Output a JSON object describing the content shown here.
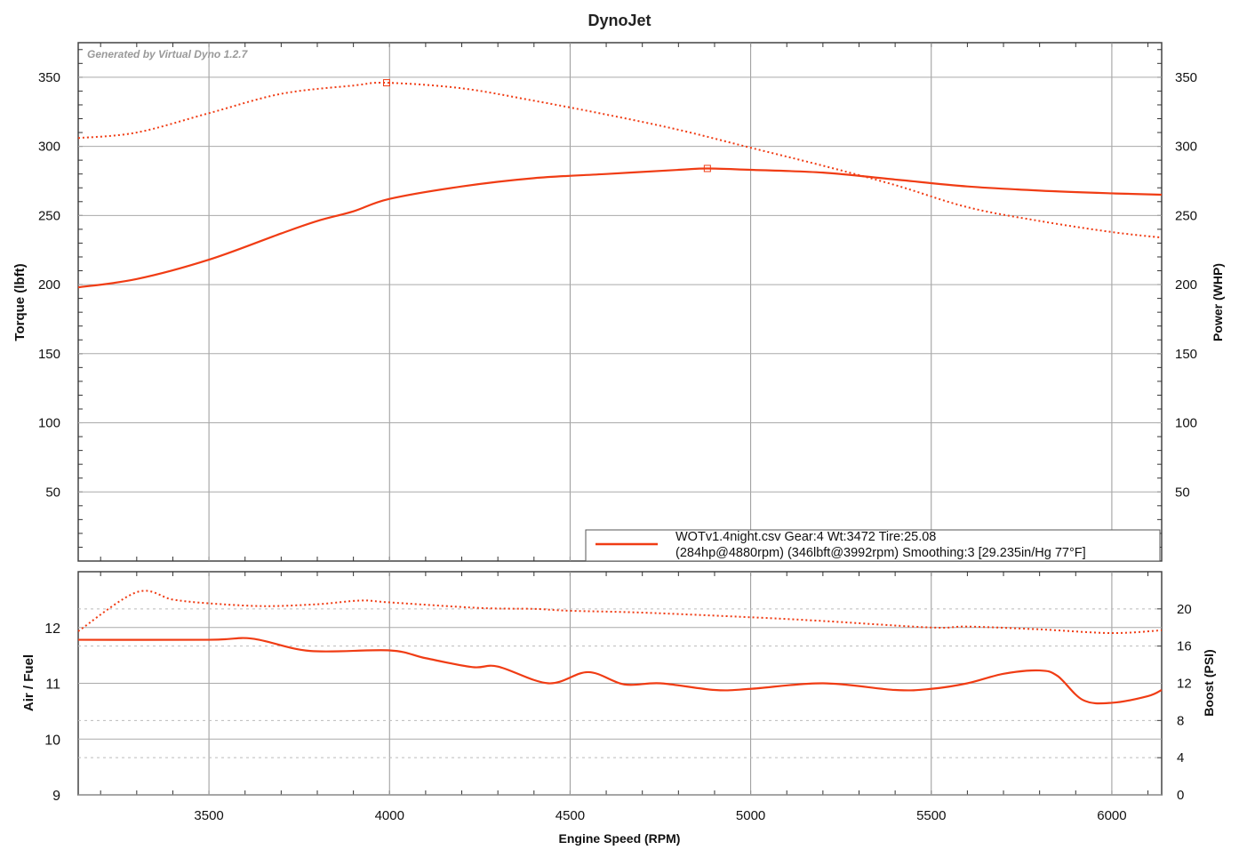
{
  "chart_data": [
    {
      "type": "line",
      "title": "DynoJet",
      "watermark": "Generated by Virtual Dyno 1.2.7",
      "xlabel": "Engine Speed (RPM)",
      "ylabel": "Torque (lbft)",
      "y2label": "Power (WHP)",
      "xlim": [
        3138,
        6138
      ],
      "ylim": [
        0,
        375
      ],
      "y2lim": [
        0,
        375
      ],
      "xticks": [
        3500,
        4000,
        4500,
        5000,
        5500,
        6000
      ],
      "yticks": [
        50,
        100,
        150,
        200,
        250,
        300,
        350
      ],
      "grid": true,
      "color": "#f03c14",
      "legend": {
        "placement": "bottom-right",
        "line1": "WOTv1.4night.csv Gear:4 Wt:3472 Tire:25.08",
        "line2": "(284hp@4880rpm) (346lbft@3992rpm) Smoothing:3 [29.235in/Hg 77°F]"
      },
      "series": [
        {
          "style": "dotted",
          "axis": "left",
          "x": [
            3138,
            3300,
            3500,
            3700,
            3900,
            3992,
            4200,
            4400,
            4600,
            4800,
            5000,
            5200,
            5400,
            5600,
            5800,
            6000,
            6138
          ],
          "y": [
            306,
            310,
            324,
            338,
            344,
            346,
            342,
            333,
            323,
            312,
            299,
            286,
            272,
            256,
            246,
            238,
            234
          ],
          "peak": [
            3992,
            346
          ]
        },
        {
          "style": "solid",
          "axis": "right",
          "x": [
            3138,
            3300,
            3500,
            3700,
            3800,
            3900,
            4000,
            4200,
            4400,
            4600,
            4800,
            4880,
            5000,
            5200,
            5400,
            5600,
            5800,
            6000,
            6138
          ],
          "y": [
            198,
            204,
            218,
            237,
            246,
            253,
            262,
            271,
            277,
            280,
            283,
            284,
            283,
            281,
            276,
            271,
            268,
            266,
            265
          ],
          "peak": [
            4880,
            284
          ]
        }
      ]
    },
    {
      "type": "line",
      "xlabel": "Engine Speed (RPM)",
      "ylabel": "Air / Fuel",
      "y2label": "Boost (PSI)",
      "xlim": [
        3138,
        6138
      ],
      "ylim": [
        9,
        13
      ],
      "y2lim": [
        0,
        24
      ],
      "xticks": [
        3500,
        4000,
        4500,
        5000,
        5500,
        6000
      ],
      "yticks": [
        9,
        10,
        11,
        12
      ],
      "y2ticks": [
        0,
        4,
        8,
        12,
        16,
        20
      ],
      "grid": true,
      "series": [
        {
          "style": "solid",
          "axis": "left",
          "x": [
            3138,
            3500,
            3620,
            3780,
            4000,
            4100,
            4230,
            4300,
            4440,
            4550,
            4650,
            4750,
            4900,
            5000,
            5200,
            5400,
            5500,
            5600,
            5700,
            5800,
            5850,
            5920,
            6000,
            6100,
            6138
          ],
          "y": [
            11.78,
            11.78,
            11.8,
            11.58,
            11.59,
            11.45,
            11.29,
            11.3,
            11.0,
            11.2,
            10.98,
            11.0,
            10.88,
            10.9,
            11.0,
            10.88,
            10.9,
            11.0,
            11.17,
            11.23,
            11.13,
            10.7,
            10.65,
            10.77,
            10.88
          ]
        },
        {
          "style": "dotted",
          "axis": "right",
          "x": [
            3138,
            3300,
            3400,
            3500,
            3650,
            3800,
            3920,
            4000,
            4250,
            4400,
            4500,
            4700,
            5000,
            5200,
            5500,
            5600,
            5800,
            6000,
            6138
          ],
          "y": [
            17.6,
            21.8,
            21.0,
            20.6,
            20.3,
            20.5,
            20.9,
            20.7,
            20.1,
            20.0,
            19.8,
            19.6,
            19.1,
            18.7,
            18.0,
            18.1,
            17.8,
            17.4,
            17.7
          ]
        }
      ]
    }
  ]
}
